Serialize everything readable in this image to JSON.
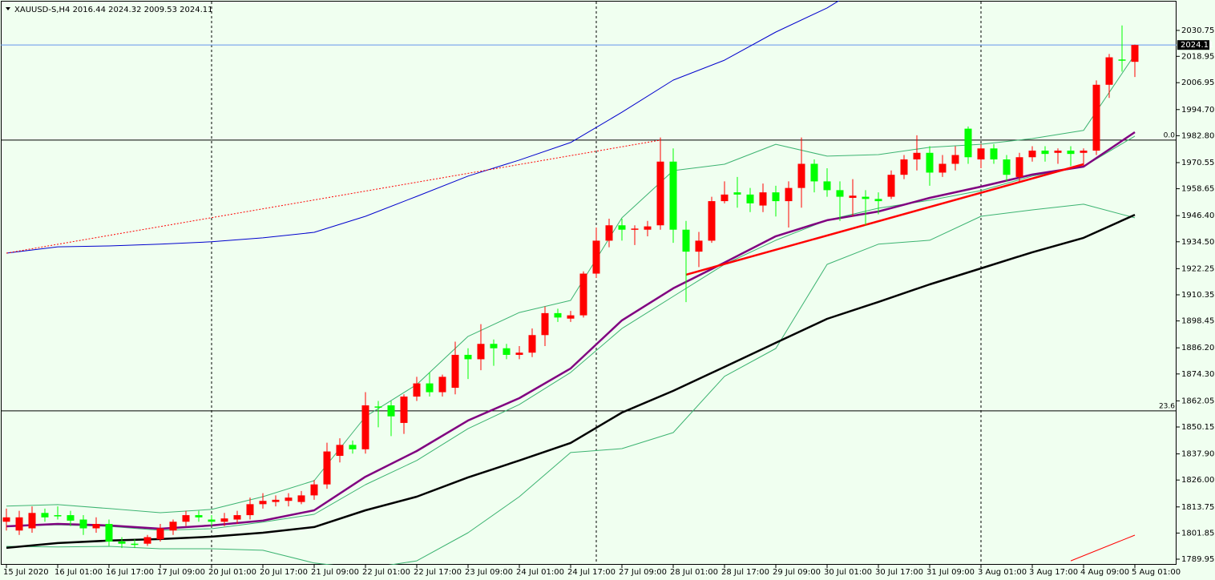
{
  "chart_data": {
    "type": "candlestick",
    "title": "XAUUSD-S,H4  2016.44 2024.32 2009.53 2024.11",
    "categories": [
      "15 Jul 2020",
      null,
      null,
      null,
      "16 Jul 01:00",
      null,
      null,
      null,
      "16 Jul 17:00",
      null,
      null,
      null,
      "17 Jul 09:00",
      null,
      null,
      null,
      "20 Jul 01:00",
      null,
      null,
      null,
      "20 Jul 17:00",
      null,
      null,
      null,
      "21 Jul 09:00",
      null,
      null,
      null,
      "22 Jul 01:00",
      null,
      null,
      null,
      "22 Jul 17:00",
      null,
      null,
      null,
      "23 Jul 09:00",
      null,
      null,
      null,
      "24 Jul 01:00",
      null,
      null,
      null,
      "24 Jul 17:00",
      null,
      null,
      null,
      "27 Jul 09:00",
      null,
      null,
      null,
      "28 Jul 01:00",
      null,
      null,
      null,
      "28 Jul 17:00",
      null,
      null,
      null,
      "29 Jul 09:00",
      null,
      null,
      null,
      "30 Jul 01:00",
      null,
      null,
      null,
      "30 Jul 17:00",
      null,
      null,
      null,
      "31 Jul 09:00",
      null,
      null,
      null,
      "3 Aug 01:00",
      null,
      null,
      null,
      "3 Aug 17:00",
      null,
      null,
      null,
      "4 Aug 09:00",
      null,
      null,
      null,
      "5 Aug 01:00"
    ],
    "open": [
      1807,
      1803,
      1804,
      1811,
      1810,
      1810,
      1808,
      1804,
      1806,
      1798,
      1797,
      1797,
      1799,
      1803,
      1807,
      1810,
      1808,
      1807,
      1808,
      1810,
      1815,
      1816,
      1816.5,
      1816,
      1819,
      1824,
      1837,
      1842,
      1840,
      1859.5,
      1860,
      1852,
      1864,
      1870,
      1866,
      1868,
      1883,
      1881,
      1888,
      1886,
      1883,
      1884,
      1892,
      1902,
      1899.5,
      1901,
      1920,
      1935,
      1942,
      1940,
      1940,
      1942,
      1971,
      1940,
      1930,
      1935,
      1953,
      1957,
      1956,
      1951,
      1957,
      1953,
      1959,
      1970,
      1962,
      1958,
      1954.5,
      1955,
      1954,
      1955,
      1965,
      1972,
      1975,
      1966,
      1970,
      1986,
      1972,
      1977,
      1972,
      1964,
      1973,
      1976,
      1975,
      1976,
      1975,
      1976,
      2006,
      2017.5,
      2016.44
    ],
    "high": [
      1813,
      1812,
      1814,
      1813,
      1814,
      1812,
      1810,
      1809,
      1808,
      1800,
      1799,
      1801,
      1806,
      1808,
      1812,
      1812,
      1810,
      1811,
      1812,
      1818,
      1820,
      1819,
      1820,
      1821,
      1826,
      1843,
      1845,
      1844,
      1866,
      1862,
      1862,
      1865,
      1873,
      1875,
      1874,
      1889,
      1886,
      1897,
      1890,
      1888,
      1887,
      1895,
      1905,
      1904,
      1903,
      1921,
      1941,
      1945,
      1945,
      1942,
      1944,
      1982,
      1977,
      1944,
      1939,
      1955,
      1962,
      1964,
      1959,
      1961,
      1960,
      1962,
      1982,
      1972,
      1968,
      1962,
      1963,
      1958,
      1957,
      1967,
      1974,
      1983,
      1978,
      1974,
      1978,
      1987,
      1979,
      1979,
      1974,
      1975,
      1978,
      1978,
      1977,
      1978,
      1977,
      2008,
      2020,
      2033,
      2024.32
    ],
    "low": [
      1803,
      1801,
      1802,
      1807,
      1808,
      1805,
      1801,
      1802,
      1796,
      1795,
      1795,
      1796,
      1798,
      1801,
      1805,
      1807,
      1805,
      1805,
      1806,
      1808,
      1813,
      1814,
      1814,
      1815,
      1817,
      1822,
      1834,
      1838,
      1838,
      1850,
      1846,
      1847,
      1862,
      1864,
      1864,
      1865,
      1872,
      1876,
      1878,
      1881,
      1881,
      1882,
      1887,
      1898,
      1898,
      1900,
      1918,
      1932,
      1935,
      1933,
      1937,
      1940,
      1934,
      1907,
      1923,
      1934,
      1952,
      1950,
      1948,
      1948,
      1946,
      1941,
      1950,
      1957,
      1955,
      1944,
      1946,
      1942,
      1947,
      1954,
      1963,
      1967,
      1960,
      1964,
      1967,
      1970,
      1968,
      1970,
      1962,
      1962,
      1971,
      1971,
      1970,
      1969,
      1969,
      1974,
      2000,
      2012,
      2009.53
    ],
    "close": [
      1809,
      1809,
      1811,
      1809,
      1809.5,
      1807.5,
      1804,
      1806,
      1798,
      1797,
      1796.5,
      1800,
      1804,
      1807,
      1810,
      1809,
      1807,
      1808.5,
      1810,
      1815,
      1816.5,
      1817,
      1818,
      1819,
      1824,
      1839,
      1842,
      1840,
      1860,
      1859,
      1855,
      1864,
      1870,
      1866,
      1873,
      1883,
      1881,
      1888,
      1886,
      1883,
      1884,
      1892,
      1902,
      1900,
      1901,
      1920,
      1935,
      1942,
      1940,
      1940.5,
      1941.5,
      1971,
      1940,
      1930,
      1935,
      1953,
      1956,
      1956,
      1952,
      1957,
      1953,
      1959,
      1970,
      1962,
      1958,
      1955,
      1955.5,
      1954,
      1953,
      1965,
      1972,
      1975,
      1966,
      1970,
      1974,
      1973,
      1977,
      1972,
      1965,
      1973,
      1976,
      1974.5,
      1976,
      1974.5,
      1976,
      2006,
      2018.5,
      2017,
      2024.11
    ],
    "up_color": "#ff0000",
    "down_color": "#00ff00",
    "ylim": [
      1787.4,
      2044.6
    ],
    "yticks": [
      2030.75,
      2018.95,
      2006.95,
      {
        "value": 1994.7,
        "label": "1994.70"
      },
      {
        "value": 1982.8,
        "label": "1982.80"
      },
      1970.55,
      1958.65,
      {
        "value": 1946.4,
        "label": "1946.40"
      },
      {
        "value": 1934.5,
        "label": "1934.50"
      },
      1922.25,
      1910.35,
      1898.45,
      {
        "value": 1886.2,
        "label": "1886.20"
      },
      {
        "value": 1874.3,
        "label": "1874.30"
      },
      1862.05,
      1850.15,
      {
        "value": 1837.9,
        "label": "1837.90"
      },
      {
        "value": 1826,
        "label": "1826.00"
      },
      1813.75,
      1801.85,
      1789.95
    ],
    "current_price": 2024.11,
    "current_price_color": "#6495ed",
    "levels": [
      {
        "label": "0.0",
        "price": 1980.8
      },
      {
        "label": "23.6",
        "price": 1857.5
      }
    ],
    "overlays": {
      "x": [
        0,
        4,
        8,
        12,
        16,
        20,
        24,
        28,
        32,
        36,
        40,
        44,
        48,
        52,
        56,
        60,
        64,
        68,
        72,
        76,
        80,
        84,
        88
      ],
      "series": [
        {
          "color": "#3cb371",
          "style": "thin",
          "values": [
            1814.1,
            1814.8,
            1813.0,
            1811.1,
            1812.6,
            1818.4,
            1825.7,
            1854.9,
            1869.5,
            1891.4,
            1902.3,
            1907.8,
            1945.4,
            1966.9,
            1969.8,
            1978.9,
            1973.5,
            1974.2,
            1977.5,
            1978.9,
            1981.5,
            1985.2,
            2019.8
          ]
        },
        {
          "color": "#3cb371",
          "style": "thin",
          "values": [
            1804.9,
            1805.6,
            1804.9,
            1803.1,
            1803.8,
            1806.8,
            1810.4,
            1823.9,
            1834.9,
            1849.4,
            1860.4,
            1875.0,
            1895.0,
            1909.6,
            1924.2,
            1935.2,
            1944.3,
            1949.8,
            1953.4,
            1957.8,
            1964.4,
            1968.7,
            1982.6
          ]
        },
        {
          "color": "#3cb371",
          "style": "thin",
          "values": [
            1795.8,
            1795.5,
            1795.8,
            1794.7,
            1794.7,
            1794.0,
            1788.2,
            1785.6,
            1789.2,
            1802.0,
            1818.4,
            1838.5,
            1840.3,
            1847.6,
            1873.2,
            1885.9,
            1924.2,
            1933.4,
            1935.2,
            1946.1,
            1949.0,
            1951.6,
            1945.4
          ]
        },
        {
          "color": "#0000cd",
          "style": "thin",
          "values": [
            1929.3,
            1932.2,
            1932.6,
            1933.4,
            1934.5,
            1936.3,
            1938.8,
            1946.1,
            1955.2,
            1964.4,
            1971.7,
            1979.7,
            1993.5,
            2008.1,
            2017.2,
            2030.0,
            2041.0,
            2055.3,
            null,
            null,
            null,
            null,
            null
          ]
        },
        {
          "color": "#800080",
          "style": "thick",
          "values": [
            1804.9,
            1806.0,
            1805.3,
            1803.8,
            1805.3,
            1807.5,
            1812.2,
            1827.5,
            1839.2,
            1853.1,
            1863.3,
            1876.8,
            1898.7,
            1913.3,
            1925.0,
            1937.0,
            1944.3,
            1948.3,
            1954.5,
            1959.6,
            1965.1,
            1968.7,
            1984.4
          ]
        },
        {
          "color": "#000000",
          "style": "thick",
          "values": [
            1795.1,
            1797.3,
            1798.4,
            1799.1,
            1800.2,
            1802.0,
            1804.6,
            1812.2,
            1818.4,
            1827.2,
            1834.9,
            1842.9,
            1856.7,
            1866.6,
            1877.5,
            1888.5,
            1899.4,
            1907.1,
            1915.1,
            1922.4,
            1929.7,
            1936.3,
            1946.8
          ]
        }
      ]
    },
    "lines": [
      {
        "color": "#ff0000",
        "style": "thick",
        "x": [
          53,
          84
        ],
        "values": [
          1919.5,
          1969.8
        ]
      },
      {
        "color": "#ff0000",
        "style": "dotted",
        "x": [
          0,
          51
        ],
        "values": [
          1929.3,
          1980.8
        ]
      },
      {
        "color": "#ff0000",
        "style": "thin",
        "x": [
          83,
          88
        ],
        "values": [
          1789.2,
          1800.9
        ]
      }
    ]
  }
}
